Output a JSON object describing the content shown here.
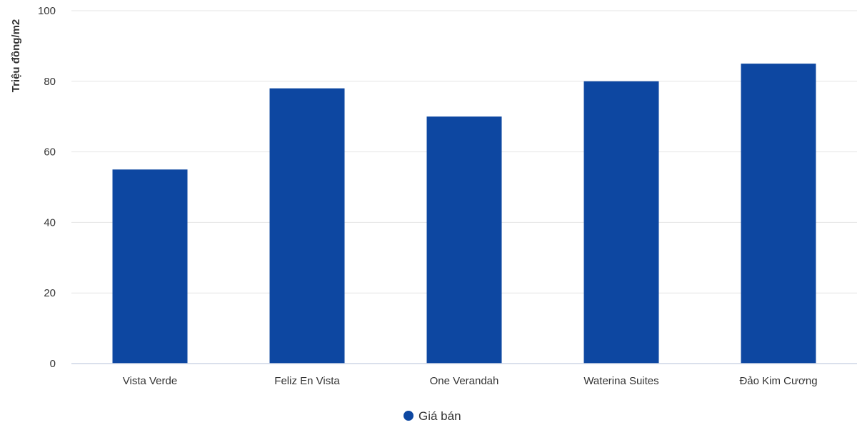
{
  "chart_data": {
    "type": "bar",
    "title": "",
    "xlabel": "",
    "ylabel": "Triệu đồng/m2",
    "categories": [
      "Vista Verde",
      "Feliz En Vista",
      "One Verandah",
      "Waterina Suites",
      "Đảo Kim Cương"
    ],
    "series": [
      {
        "name": "Giá bán",
        "values": [
          55,
          78,
          70,
          80,
          85
        ],
        "color": "#0d47a1"
      }
    ],
    "ylim": [
      0,
      100
    ],
    "yticks": [
      0,
      20,
      40,
      60,
      80,
      100
    ],
    "grid": true,
    "legend": "bottom-center"
  }
}
